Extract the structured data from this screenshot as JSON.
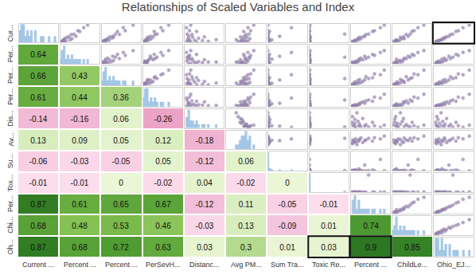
{
  "chart_data": {
    "type": "scatter_matrix",
    "title": "Relationships of Scaled Variables and Index",
    "x_labels": [
      "Current ...",
      "Percent ...",
      "Percent ...",
      "PerSevH...",
      "Distanc...",
      "Avg PM...",
      "Sum Tra...",
      "Toxic Re...",
      "Percent ...",
      "ChildLe...",
      "Ohio_EJ..."
    ],
    "y_labels": [
      "Cur...",
      "Per...",
      "Per...",
      "Per...",
      "Dis...",
      "Av...",
      "Su...",
      "Tox...",
      "Per...",
      "Chi...",
      "Oh..."
    ],
    "correlations": [
      [
        null,
        null,
        null,
        null,
        null,
        null,
        null,
        null,
        null,
        null,
        null
      ],
      [
        0.64,
        null,
        null,
        null,
        null,
        null,
        null,
        null,
        null,
        null,
        null
      ],
      [
        0.66,
        0.43,
        null,
        null,
        null,
        null,
        null,
        null,
        null,
        null,
        null
      ],
      [
        0.61,
        0.44,
        0.36,
        null,
        null,
        null,
        null,
        null,
        null,
        null,
        null
      ],
      [
        -0.14,
        -0.16,
        0.06,
        -0.26,
        null,
        null,
        null,
        null,
        null,
        null,
        null
      ],
      [
        0.13,
        0.09,
        0.05,
        0.12,
        -0.18,
        null,
        null,
        null,
        null,
        null,
        null
      ],
      [
        -0.06,
        -0.03,
        -0.05,
        0.05,
        -0.12,
        0.06,
        null,
        null,
        null,
        null,
        null
      ],
      [
        -0.01,
        -0.01,
        0,
        -0.02,
        0.04,
        -0.02,
        0,
        null,
        null,
        null,
        null
      ],
      [
        0.87,
        0.61,
        0.65,
        0.67,
        -0.12,
        0.11,
        -0.05,
        -0.01,
        null,
        null,
        null
      ],
      [
        0.68,
        0.48,
        0.53,
        0.46,
        -0.03,
        0.13,
        -0.09,
        0.01,
        0.74,
        null,
        null
      ],
      [
        0.87,
        0.68,
        0.72,
        0.63,
        0.03,
        0.3,
        0.01,
        0.03,
        0.9,
        0.85,
        null
      ]
    ],
    "zlim": [
      -1,
      1
    ],
    "observations": [
      [
        0.02,
        0.03,
        0.06,
        0.05,
        0.1,
        0.08,
        0.12,
        0.15,
        0.14,
        0.22,
        0.2,
        0.28,
        0.3,
        0.33,
        0.42,
        0.44,
        0.58,
        0.62,
        0.78,
        0.92
      ],
      [
        0.05,
        0.02,
        0.1,
        0.03,
        0.06,
        0.15,
        0.08,
        0.1,
        0.25,
        0.12,
        0.3,
        0.18,
        0.22,
        0.4,
        0.28,
        0.35,
        0.5,
        0.45,
        0.6,
        0.7
      ],
      [
        0.03,
        0.06,
        0.02,
        0.1,
        0.05,
        0.08,
        0.18,
        0.12,
        0.1,
        0.25,
        0.15,
        0.3,
        0.2,
        0.28,
        0.45,
        0.35,
        0.4,
        0.6,
        0.55,
        0.8
      ],
      [
        0.02,
        0.03,
        0.05,
        0.02,
        0.08,
        0.04,
        0.1,
        0.06,
        0.15,
        0.1,
        0.2,
        0.12,
        0.25,
        0.18,
        0.3,
        0.35,
        0.28,
        0.5,
        0.45,
        0.65
      ],
      [
        0.3,
        0.15,
        0.6,
        0.1,
        0.45,
        0.05,
        0.25,
        0.8,
        0.12,
        0.35,
        0.08,
        0.2,
        0.5,
        0.1,
        0.18,
        0.06,
        0.3,
        0.12,
        0.04,
        0.15
      ],
      [
        0.35,
        0.5,
        0.3,
        0.45,
        0.4,
        0.55,
        0.38,
        0.25,
        0.48,
        0.42,
        0.6,
        0.52,
        0.36,
        0.46,
        0.5,
        0.58,
        0.44,
        0.62,
        0.55,
        0.7
      ],
      [
        0,
        0,
        0.02,
        0,
        0.05,
        0,
        0.01,
        0,
        0.1,
        0,
        0.02,
        0,
        0,
        0.3,
        0,
        0.01,
        0.04,
        0,
        0.6,
        0
      ],
      [
        0,
        0,
        0,
        0,
        0,
        0.01,
        0,
        0,
        0,
        0,
        0,
        0.02,
        0,
        0,
        0,
        0.9,
        0,
        0,
        0,
        0.01
      ],
      [
        0.03,
        0.05,
        0.04,
        0.08,
        0.1,
        0.12,
        0.1,
        0.15,
        0.2,
        0.18,
        0.25,
        0.22,
        0.3,
        0.35,
        0.38,
        0.45,
        0.55,
        0.6,
        0.75,
        0.85
      ],
      [
        0.05,
        0.02,
        0.08,
        0.1,
        0.06,
        0.15,
        0.12,
        0.2,
        0.1,
        0.25,
        0.3,
        0.2,
        0.28,
        0.4,
        0.35,
        0.45,
        0.5,
        0.55,
        0.65,
        0.8
      ],
      [
        0.04,
        0.05,
        0.07,
        0.08,
        0.1,
        0.12,
        0.14,
        0.18,
        0.2,
        0.22,
        0.26,
        0.28,
        0.32,
        0.38,
        0.42,
        0.48,
        0.56,
        0.62,
        0.74,
        0.9
      ]
    ],
    "xlim": [
      0,
      1
    ],
    "ylim": [
      0,
      1
    ],
    "tick_labels": false,
    "marker": "circle",
    "color": "#9b7bb5",
    "highlighted_cells": [
      [
        10,
        7
      ],
      [
        10,
        8
      ],
      [
        0,
        10
      ]
    ]
  }
}
